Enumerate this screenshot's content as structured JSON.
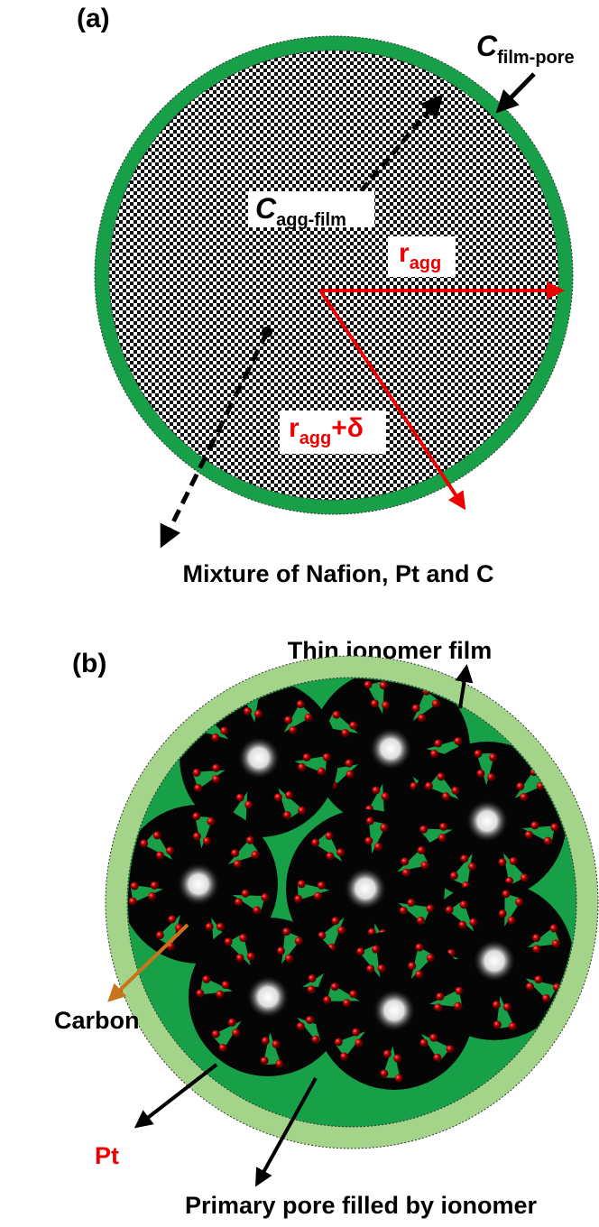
{
  "panel_a": {
    "label": "(a)",
    "film_pore": {
      "symbol": "C",
      "subscript": "film-pore"
    },
    "agg_film": {
      "symbol": "C",
      "subscript": "agg-film"
    },
    "r_agg": {
      "symbol": "r",
      "subscript": "agg"
    },
    "r_agg_delta": {
      "symbol": "r",
      "subscript": "agg",
      "suffix": "+δ"
    },
    "caption": "Mixture of Nafion, Pt and C"
  },
  "panel_b": {
    "label": "(b)",
    "film": "Thin ionomer film",
    "carbon": "Carbon",
    "pt": "Pt",
    "pore": "Primary pore filled by ionomer"
  }
}
